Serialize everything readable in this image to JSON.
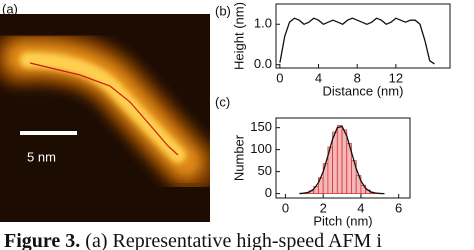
{
  "image": {
    "label": "(a)",
    "scale_bar": "5 nm"
  },
  "chart_data": [
    {
      "type": "line",
      "panel_label": "(b)",
      "x_label": "Distance (nm)",
      "y_label": "Height (nm)",
      "color": "#111111",
      "x": [
        0,
        0.5,
        1,
        1.5,
        2,
        2.5,
        3,
        3.5,
        4,
        4.5,
        5,
        5.5,
        6,
        6.5,
        7,
        7.5,
        8,
        8.5,
        9,
        9.5,
        10,
        10.5,
        11,
        11.5,
        12,
        12.5,
        13,
        13.5,
        14,
        14.5,
        15,
        15.5,
        16
      ],
      "values": [
        0.05,
        0.7,
        1.05,
        1.15,
        1.1,
        1.0,
        1.05,
        1.15,
        1.1,
        1.0,
        1.05,
        1.1,
        1.05,
        1.0,
        1.1,
        1.15,
        1.1,
        1.05,
        1.0,
        1.05,
        1.15,
        1.1,
        1.0,
        1.05,
        1.15,
        1.1,
        1.05,
        1.1,
        1.1,
        1.0,
        0.6,
        0.1,
        0.02
      ],
      "xlim": [
        -0.4,
        17.6
      ],
      "ylim": [
        -0.08,
        1.5
      ],
      "xticks": [
        0,
        4,
        8,
        12
      ],
      "yticks": [
        {
          "value": 0,
          "label": "0.0"
        },
        {
          "value": 1,
          "label": "1.0"
        }
      ]
    },
    {
      "type": "histogram",
      "panel_label": "(c)",
      "x_label": "Pitch (nm)",
      "y_label": "Number",
      "color": "#f4b6b6",
      "edge_color": "#d43a3a",
      "fit_color": "#111111",
      "bins": [
        0.75,
        1.0,
        1.25,
        1.5,
        1.75,
        2.0,
        2.25,
        2.5,
        2.75,
        3.0,
        3.25,
        3.5,
        3.75,
        4.0,
        4.25,
        4.5,
        4.75,
        5.0,
        5.25
      ],
      "counts": [
        1,
        2,
        6,
        16,
        36,
        68,
        106,
        140,
        155,
        145,
        114,
        75,
        41,
        19,
        8,
        2,
        1,
        0
      ],
      "fit": {
        "x": [
          0.75,
          1.0,
          1.25,
          1.5,
          1.75,
          2.0,
          2.25,
          2.5,
          2.75,
          3.0,
          3.25,
          3.5,
          3.75,
          4.0,
          4.25,
          4.5,
          4.75,
          5.0,
          5.25
        ],
        "values": [
          0,
          1,
          3.5,
          10,
          25,
          50,
          86,
          124,
          150,
          153,
          131,
          94,
          57,
          29,
          12,
          4,
          1.3,
          0.3,
          0
        ]
      },
      "xlim": [
        -0.5,
        6.6
      ],
      "ylim": [
        -10,
        172
      ],
      "xticks": [
        0,
        2,
        4,
        6
      ],
      "yticks": [
        0,
        50,
        100,
        150
      ]
    }
  ],
  "caption": {
    "figure": "Figure 3.",
    "text": " (a) Representative high-speed AFM i"
  }
}
